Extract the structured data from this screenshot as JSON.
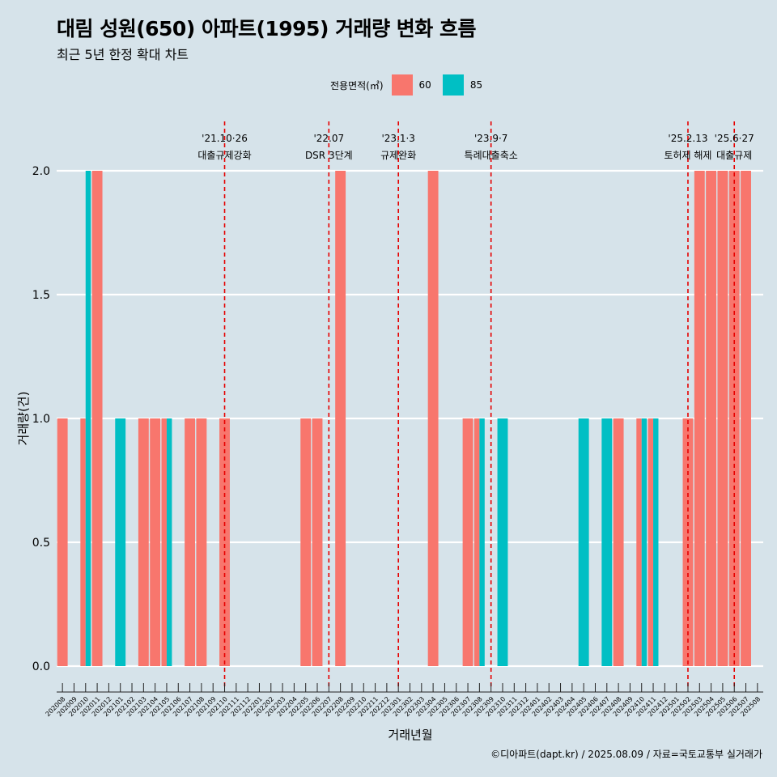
{
  "title": "대림 성원(650) 아파트(1995) 거래량 변화 흐름",
  "subtitle": "최근 5년 한정 확대 차트",
  "caption": "©디아파트(dapt.kr) / 2025.08.09 / 자료=국토교통부 실거래가",
  "legend": {
    "title": "전용면적(㎡)",
    "items": [
      {
        "label": "60",
        "color": "#f8766d"
      },
      {
        "label": "85",
        "color": "#00bfc4"
      }
    ]
  },
  "chart_data": {
    "type": "bar",
    "xlabel": "거래년월",
    "ylabel": "거래량(건)",
    "ylim": [
      0,
      2
    ],
    "yticks": [
      "0.0",
      "0.5",
      "1.0",
      "1.5",
      "2.0"
    ],
    "grid": true,
    "legend_position": "top",
    "categories": [
      "202008",
      "202009",
      "202010",
      "202011",
      "202012",
      "202101",
      "202102",
      "202103",
      "202104",
      "202105",
      "202106",
      "202107",
      "202108",
      "202109",
      "202110",
      "202111",
      "202112",
      "202201",
      "202202",
      "202203",
      "202204",
      "202205",
      "202206",
      "202207",
      "202208",
      "202209",
      "202210",
      "202211",
      "202212",
      "202301",
      "202302",
      "202303",
      "202304",
      "202305",
      "202306",
      "202307",
      "202308",
      "202309",
      "202310",
      "202311",
      "202312",
      "202401",
      "202402",
      "202403",
      "202404",
      "202405",
      "202406",
      "202407",
      "202408",
      "202409",
      "202410",
      "202411",
      "202412",
      "202501",
      "202502",
      "202503",
      "202504",
      "202505",
      "202506",
      "202507",
      "202508"
    ],
    "series": [
      {
        "name": "60",
        "color": "#f8766d",
        "values": [
          1,
          0,
          1,
          2,
          0,
          0,
          0,
          1,
          1,
          1,
          0,
          1,
          1,
          0,
          1,
          0,
          0,
          0,
          0,
          0,
          0,
          1,
          1,
          0,
          2,
          0,
          0,
          0,
          0,
          0,
          0,
          0,
          2,
          0,
          0,
          1,
          1,
          0,
          0,
          0,
          0,
          0,
          0,
          0,
          0,
          0,
          0,
          0,
          1,
          0,
          1,
          1,
          0,
          0,
          1,
          2,
          2,
          2,
          2,
          2,
          0
        ]
      },
      {
        "name": "85",
        "color": "#00bfc4",
        "values": [
          0,
          0,
          2,
          0,
          0,
          1,
          0,
          0,
          0,
          1,
          0,
          0,
          0,
          0,
          0,
          0,
          0,
          0,
          0,
          0,
          0,
          0,
          0,
          0,
          0,
          0,
          0,
          0,
          0,
          0,
          0,
          0,
          0,
          0,
          0,
          0,
          1,
          0,
          1,
          0,
          0,
          0,
          0,
          0,
          0,
          1,
          0,
          1,
          0,
          0,
          1,
          1,
          0,
          0,
          0,
          0,
          0,
          0,
          0,
          0,
          0
        ]
      }
    ],
    "events": [
      {
        "date": "'21.10·26",
        "label": "대출규제강화",
        "x": "202110"
      },
      {
        "date": "'22.07",
        "label": "DSR 3단계",
        "x": "202207"
      },
      {
        "date": "'23.1·3",
        "label": "규제완화",
        "x": "202301"
      },
      {
        "date": "'23.9·7",
        "label": "특례대출축소",
        "x": "202309"
      },
      {
        "date": "'25.2.13",
        "label": "토허제 해제",
        "x": "202502"
      },
      {
        "date": "'25.6·27",
        "label": "대출규제",
        "x": "202506"
      }
    ]
  }
}
